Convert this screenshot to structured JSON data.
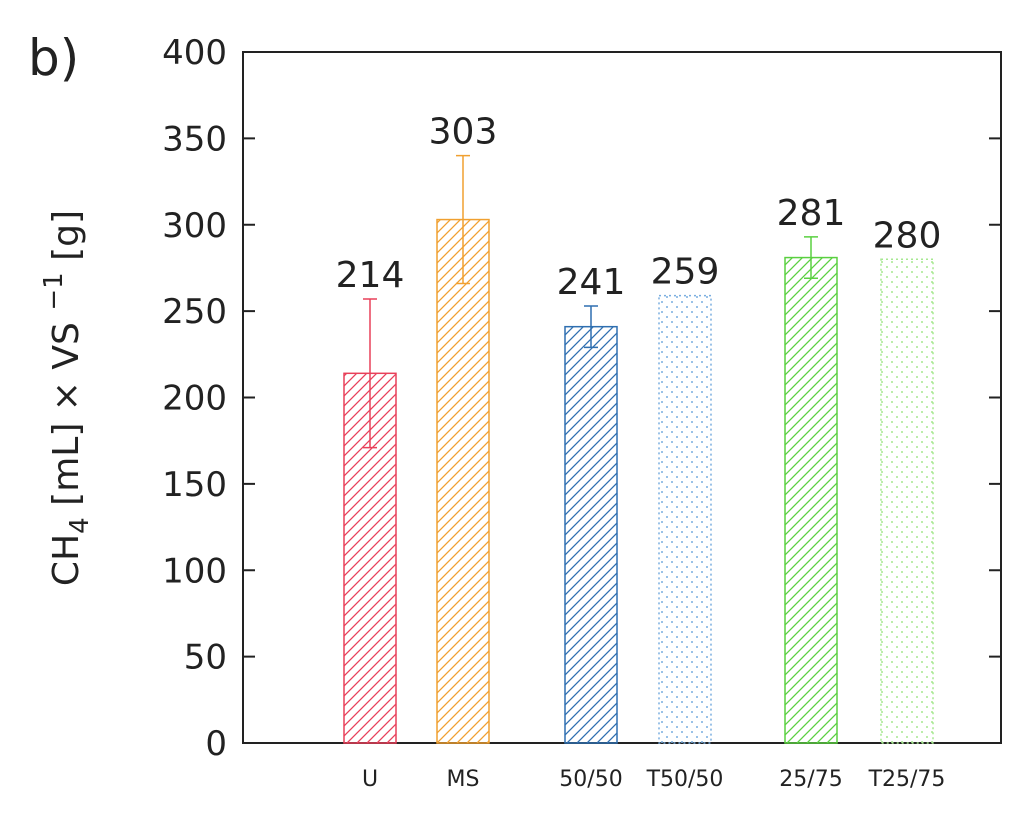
{
  "chart_data": {
    "type": "bar",
    "panel_label": "b)",
    "y_label_parts": [
      "CH",
      "4",
      " [mL]  × VS ",
      "−1",
      " [g]"
    ],
    "categories": [
      "U",
      "MS",
      "50/50",
      "T50/50",
      "25/75",
      "T25/75"
    ],
    "values": [
      214,
      303,
      241,
      259,
      281,
      280
    ],
    "errors": [
      43,
      37,
      12,
      null,
      12,
      null
    ],
    "colors": [
      "#e8405a",
      "#f0a030",
      "#2f6fb0",
      "#7aaee0",
      "#5ad040",
      "#a6e890"
    ],
    "patterns": [
      "hatch",
      "hatch",
      "hatch",
      "dots",
      "hatch",
      "dots"
    ],
    "ylim": [
      0,
      400
    ],
    "yticks": [
      0,
      50,
      100,
      150,
      200,
      250,
      300,
      350,
      400
    ]
  }
}
